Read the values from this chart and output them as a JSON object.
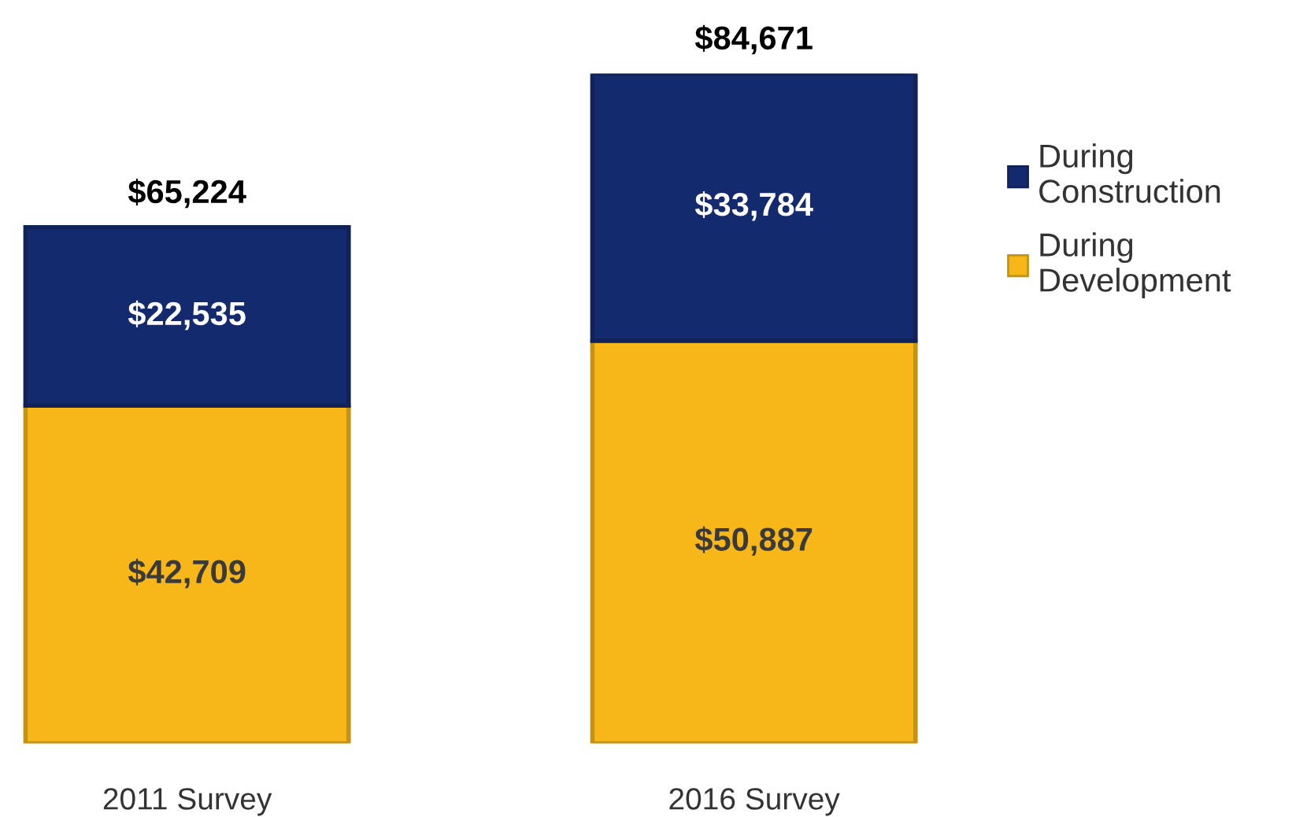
{
  "chart_data": {
    "type": "bar",
    "stacked": true,
    "categories": [
      "2011 Survey",
      "2016 Survey"
    ],
    "series": [
      {
        "name": "During Development",
        "color": "#f7b718",
        "values": [
          42709,
          50887
        ],
        "value_labels": [
          "$42,709",
          "$50,887"
        ]
      },
      {
        "name": "During Construction",
        "color": "#142a6e",
        "values": [
          22535,
          33784
        ],
        "value_labels": [
          "$22,535",
          "$33,784"
        ]
      }
    ],
    "annotations": [
      {
        "text": "$65,224",
        "x": "2011 Survey",
        "y": 65244
      },
      {
        "text": "$84,671",
        "x": "2016 Survey",
        "y": 84671
      }
    ],
    "legend": "right",
    "grid": false
  }
}
